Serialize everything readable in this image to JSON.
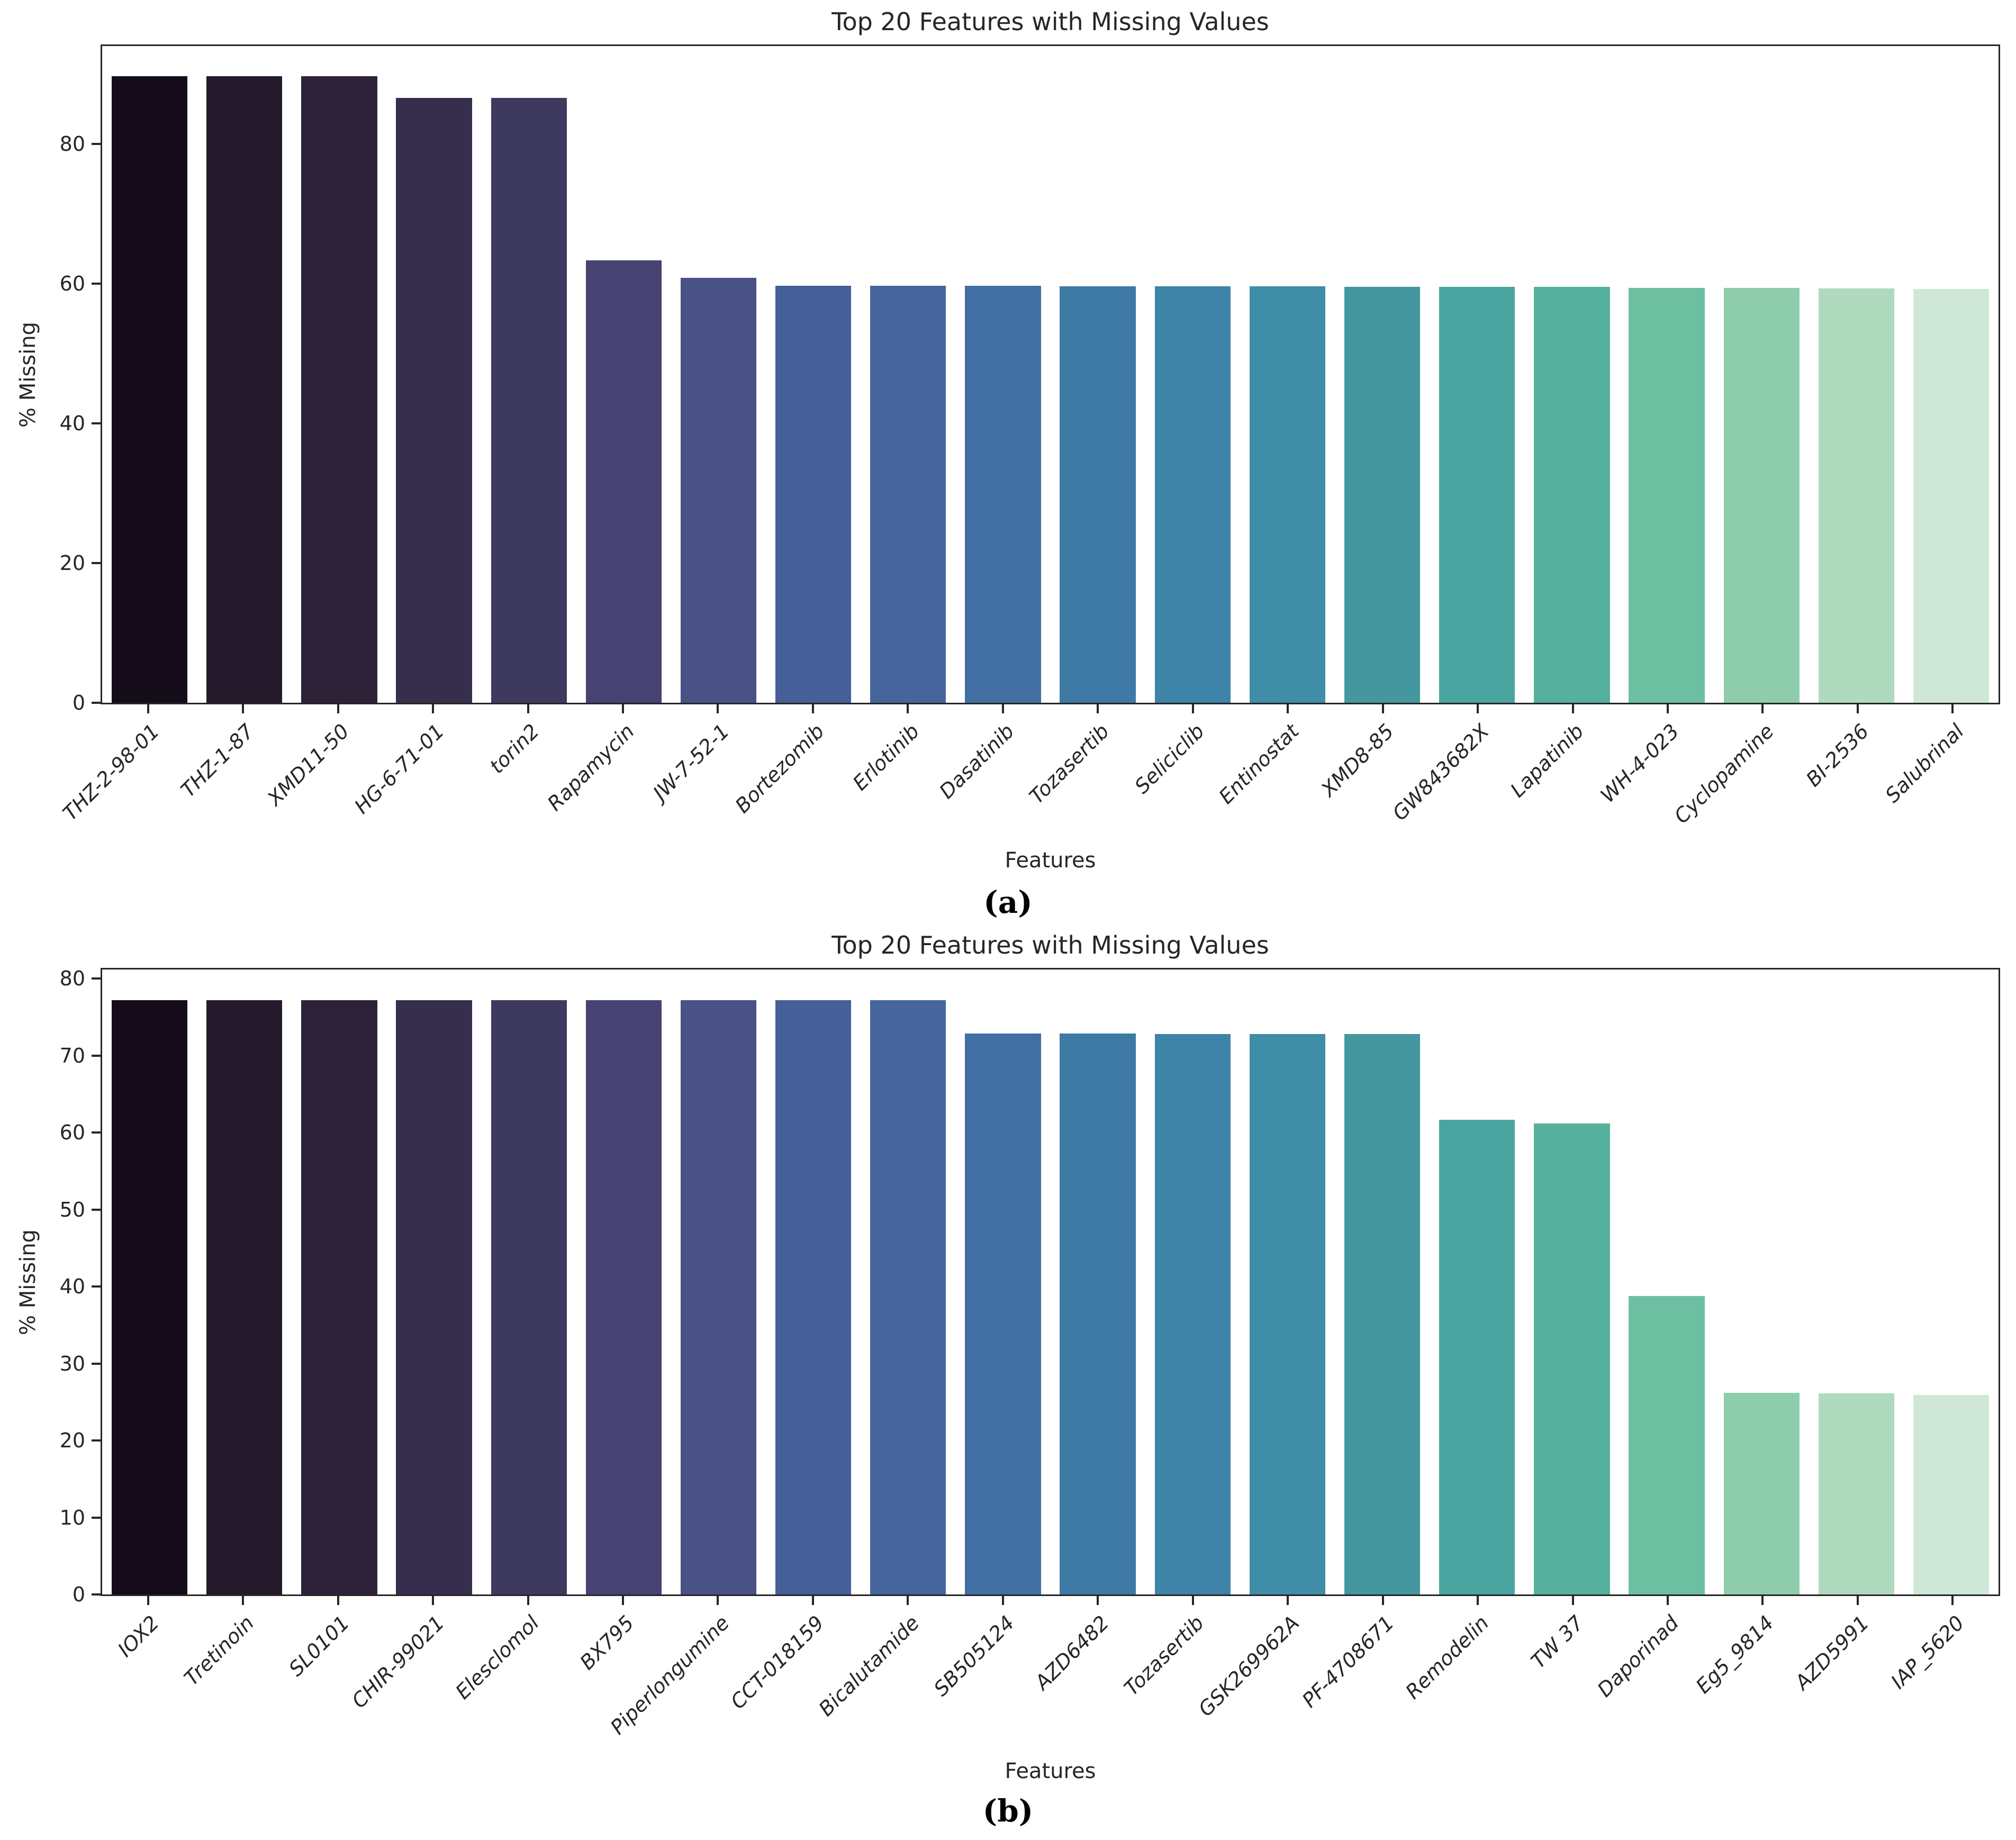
{
  "page": {
    "background": "#ffffff",
    "text_color": "#262626"
  },
  "chart_data": [
    {
      "type": "bar",
      "panel": "a",
      "caption": "(a)",
      "title": "Top 20 Features with Missing Values",
      "xlabel": "Features",
      "ylabel": "% Missing",
      "categories": [
        "THZ-2-98-01",
        "THZ-1-87",
        "XMD11-50",
        "HG-6-71-01",
        "torin2",
        "Rapamycin",
        "JW-7-52-1",
        "Bortezomib",
        "Erlotinib",
        "Dasatinib",
        "Tozasertib",
        "Seliciclib",
        "Entinostat",
        "XMD8-85",
        "GW843682X",
        "Lapatinib",
        "WH-4-023",
        "Cyclopamine",
        "BI-2536",
        "Salubrinal"
      ],
      "values": [
        89.7,
        89.7,
        89.7,
        86.6,
        86.6,
        63.3,
        60.8,
        59.7,
        59.7,
        59.7,
        59.6,
        59.6,
        59.6,
        59.5,
        59.5,
        59.5,
        59.4,
        59.4,
        59.3,
        59.2
      ],
      "ylim": [
        0,
        94
      ],
      "yticks": [
        0,
        20,
        40,
        60,
        80
      ],
      "grid": false,
      "legend": null,
      "bar_colors": [
        "#140d19",
        "#251a2c",
        "#2e2239",
        "#372e4e",
        "#3e3a5f",
        "#464272",
        "#4a5186",
        "#455f98",
        "#45659c",
        "#416fa1",
        "#3f79a5",
        "#3e83a8",
        "#3f8da7",
        "#44979f",
        "#4aa5a0",
        "#55b19d",
        "#6dbfa2",
        "#8ecdab",
        "#afdabd",
        "#cfe7d7"
      ]
    },
    {
      "type": "bar",
      "panel": "b",
      "caption": "(b)",
      "title": "Top 20 Features with Missing Values",
      "xlabel": "Features",
      "ylabel": "% Missing",
      "categories": [
        "IOX2",
        "Tretinoin",
        "SL0101",
        "CHIR-99021",
        "Elesclomol",
        "BX795",
        "Piperlongumine",
        "CCT-018159",
        "Bicalutamide",
        "SB505124",
        "AZD6482",
        "Tozasertib",
        "GSK269962A",
        "PF-4708671",
        "Remodelin",
        "TW 37",
        "Daporinad",
        "Eg5_9814",
        "AZD5991",
        "IAP_5620"
      ],
      "values": [
        77.2,
        77.2,
        77.2,
        77.2,
        77.2,
        77.2,
        77.2,
        77.2,
        77.2,
        72.9,
        72.9,
        72.8,
        72.8,
        72.8,
        61.7,
        61.2,
        38.8,
        26.2,
        26.1,
        25.9
      ],
      "ylim": [
        0,
        81.2
      ],
      "yticks": [
        0,
        10,
        20,
        30,
        40,
        50,
        60,
        70,
        80
      ],
      "grid": false,
      "legend": null,
      "bar_colors": [
        "#140d19",
        "#251a2c",
        "#2e2239",
        "#372e4e",
        "#3e3a5f",
        "#464272",
        "#4a5186",
        "#455f98",
        "#45659c",
        "#416fa1",
        "#3f79a5",
        "#3e83a8",
        "#3f8da7",
        "#44979f",
        "#4aa5a0",
        "#55b19d",
        "#6dbfa2",
        "#8ecdab",
        "#afdabd",
        "#cfe7d7"
      ]
    }
  ]
}
